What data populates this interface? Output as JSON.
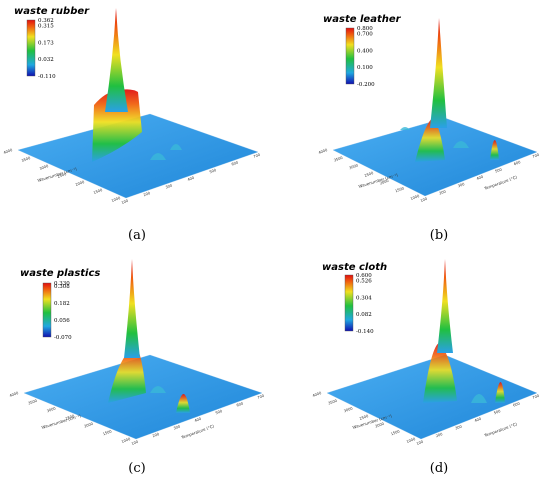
{
  "chart_data": [
    {
      "type": "3d-surface",
      "title": "waste rubber",
      "colorbar_ticks": [
        0.362,
        0.315,
        0.173,
        0.032,
        -0.11
      ],
      "colorbar_range": [
        -0.11,
        0.362
      ],
      "xlabel": "Wavenumber (cm⁻¹)",
      "ylabel": "",
      "x_ticks": [
        "4000",
        "3500",
        "3000",
        "2500",
        "2000",
        "1500",
        "1000"
      ],
      "y_ticks": [
        "700",
        "600",
        "500",
        "400",
        "300",
        "200",
        "100"
      ],
      "peaks": [
        {
          "y": 0.362,
          "kind": "spike-with-plateau",
          "height_frac": 1.0
        },
        {
          "y": 0.17,
          "kind": "plateau",
          "height_frac": 0.55
        }
      ],
      "caption": "(a)"
    },
    {
      "type": "3d-surface",
      "title": "waste leather",
      "colorbar_ticks": [
        0.8,
        0.7,
        0.4,
        0.1,
        -0.2
      ],
      "colorbar_range": [
        -0.2,
        0.8
      ],
      "xlabel": "Wavenumber (cm⁻¹)",
      "ylabel": "Temperature (°C)",
      "x_ticks": [
        "4000",
        "3500",
        "3000",
        "2500",
        "2000",
        "1500",
        "1000"
      ],
      "y_ticks": [
        "700",
        "600",
        "500",
        "400",
        "300",
        "200",
        "100"
      ],
      "peaks": [
        {
          "y": 0.8,
          "kind": "spike",
          "height_frac": 1.0
        },
        {
          "y": 0.35,
          "kind": "bump",
          "height_frac": 0.35
        },
        {
          "y": 0.3,
          "kind": "bump",
          "height_frac": 0.28
        }
      ],
      "caption": "(b)"
    },
    {
      "type": "3d-surface",
      "title": "waste plastics",
      "colorbar_ticks": [
        0.33,
        0.308,
        0.182,
        0.056,
        -0.07
      ],
      "colorbar_range": [
        -0.07,
        0.33
      ],
      "xlabel": "Wavenumber (cm⁻¹)",
      "ylabel": "Temperature (°C)",
      "x_ticks": [
        "4000",
        "3500",
        "3000",
        "2500",
        "2000",
        "1500",
        "1000"
      ],
      "y_ticks": [
        "700",
        "600",
        "500",
        "400",
        "300",
        "200",
        "100"
      ],
      "peaks": [
        {
          "y": 0.33,
          "kind": "spike",
          "height_frac": 1.0
        },
        {
          "y": 0.15,
          "kind": "bump",
          "height_frac": 0.3
        }
      ],
      "caption": "(c)"
    },
    {
      "type": "3d-surface",
      "title": "waste cloth",
      "colorbar_ticks": [
        0.6,
        0.526,
        0.304,
        0.082,
        -0.14
      ],
      "colorbar_range": [
        -0.14,
        0.6
      ],
      "xlabel": "Wavenumber (cm⁻¹)",
      "ylabel": "Temperature (°C)",
      "x_ticks": [
        "4000",
        "3500",
        "3000",
        "2500",
        "2000",
        "1500",
        "1000"
      ],
      "y_ticks": [
        "700",
        "600",
        "500",
        "400",
        "300",
        "200",
        "100"
      ],
      "peaks": [
        {
          "y": 0.6,
          "kind": "spike",
          "height_frac": 1.0
        },
        {
          "y": 0.35,
          "kind": "bump",
          "height_frac": 0.4
        },
        {
          "y": 0.25,
          "kind": "bump",
          "height_frac": 0.3
        }
      ],
      "caption": "(d)"
    }
  ],
  "colors": {
    "floor": "#2a8fe0",
    "floor_light": "#4aa8f0",
    "gradient_top": "#e01010",
    "gradient_mid1": "#f0e020",
    "gradient_mid2": "#20c040",
    "gradient_mid3": "#20a8e0",
    "gradient_bottom": "#1010b0"
  }
}
